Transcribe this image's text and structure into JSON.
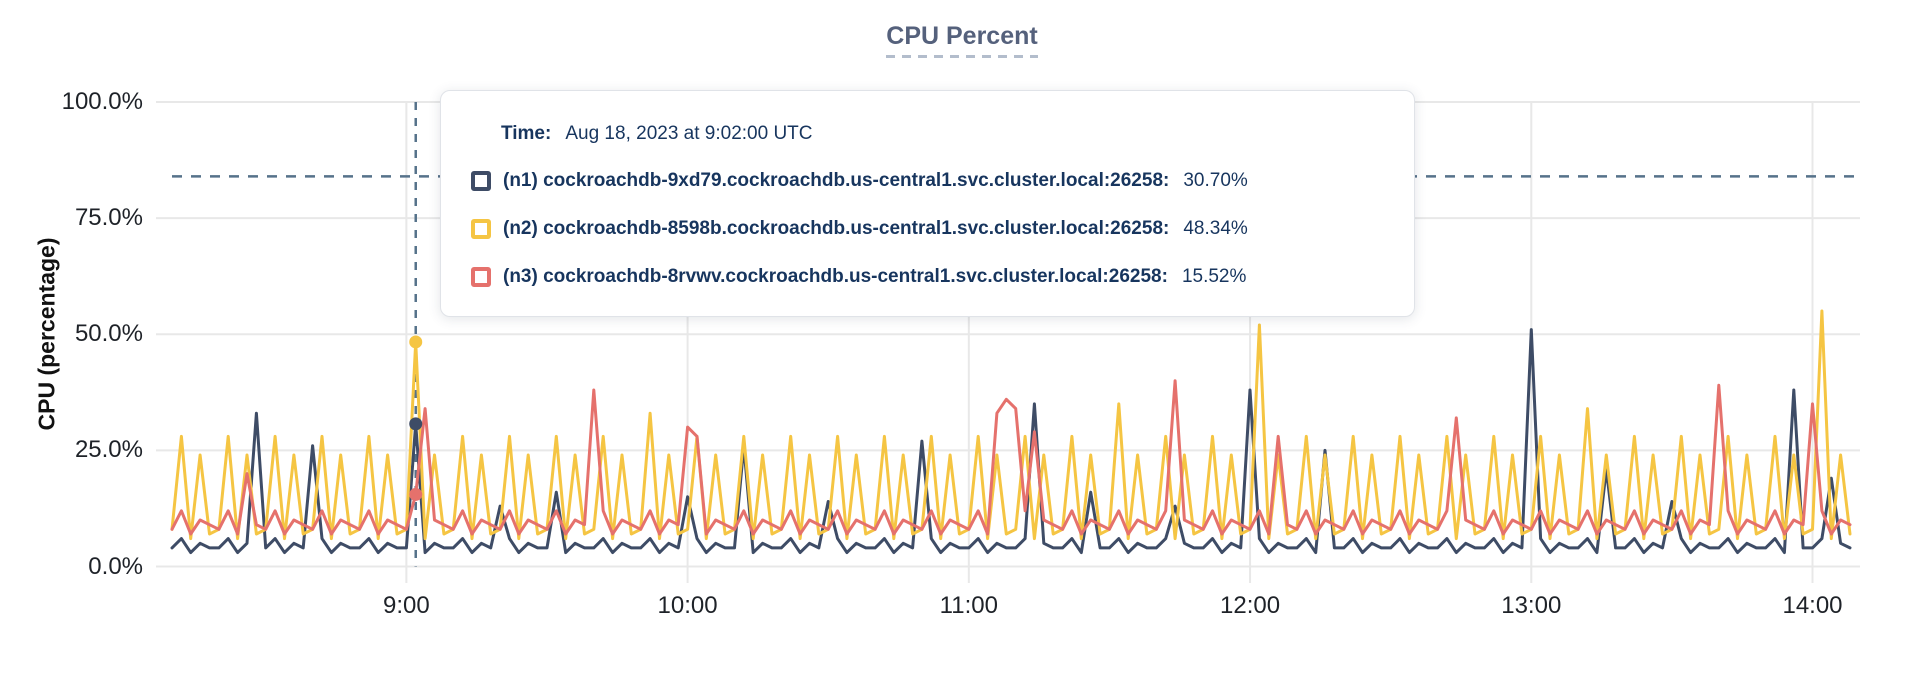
{
  "page": {
    "title": "CPU Percent"
  },
  "tooltip": {
    "time_label": "Time:",
    "time_value": "Aug 18, 2023 at 9:02:00 UTC",
    "series": [
      {
        "label": "(n1) cockroachdb-9xd79.cockroachdb.us-central1.svc.cluster.local:26258:",
        "value": "30.70%"
      },
      {
        "label": "(n2) cockroachdb-8598b.cockroachdb.us-central1.svc.cluster.local:26258:",
        "value": "48.34%"
      },
      {
        "label": "(n3) cockroachdb-8rvwv.cockroachdb.us-central1.svc.cluster.local:26258:",
        "value": "15.52%"
      }
    ]
  },
  "chart_data": {
    "type": "line",
    "title": "CPU Percent",
    "xlabel": "",
    "ylabel": "CPU (percentage)",
    "ylim": [
      0,
      100
    ],
    "grid": true,
    "legend_position": "hover-tooltip",
    "y_tick_labels": [
      "100.0%",
      "75.0%",
      "50.0%",
      "25.0%",
      "0.0%"
    ],
    "y_tick_values": [
      100,
      75,
      50,
      25,
      0
    ],
    "x_tick_labels": [
      "9:00",
      "10:00",
      "11:00",
      "12:00",
      "13:00",
      "14:00"
    ],
    "x_tick_minutes": [
      540,
      600,
      660,
      720,
      780,
      840
    ],
    "x_start_minutes": 490,
    "x_step_minutes": 2,
    "threshold_percent": 84,
    "hover_index": 26,
    "hover_time_minutes": 542,
    "colors": {
      "grid": "#e8e8e8",
      "dashed_line": "#56728a",
      "tick_text": "#1e2228",
      "title_text": "#55617c",
      "tooltip_text": "#17355e"
    },
    "series": [
      {
        "name": "n1",
        "host": "cockroachdb-9xd79.cockroachdb.us-central1.svc.cluster.local:26258",
        "color": "#3e4c66",
        "hover_value": 30.7,
        "values": [
          4,
          6,
          3,
          5,
          4,
          4,
          6,
          3,
          5,
          33,
          4,
          6,
          3,
          5,
          4,
          26,
          6,
          3,
          5,
          4,
          4,
          6,
          3,
          5,
          4,
          4,
          30.7,
          3,
          5,
          4,
          4,
          6,
          3,
          5,
          4,
          13,
          6,
          3,
          5,
          4,
          4,
          16,
          3,
          5,
          4,
          4,
          6,
          3,
          5,
          4,
          4,
          6,
          3,
          5,
          4,
          15,
          6,
          3,
          5,
          4,
          4,
          26,
          3,
          5,
          4,
          4,
          6,
          3,
          5,
          4,
          14,
          6,
          3,
          5,
          4,
          4,
          6,
          3,
          5,
          4,
          27,
          6,
          3,
          5,
          4,
          4,
          6,
          3,
          5,
          4,
          4,
          6,
          35,
          5,
          4,
          4,
          6,
          3,
          16,
          4,
          4,
          6,
          3,
          5,
          4,
          4,
          6,
          13,
          5,
          4,
          4,
          6,
          3,
          5,
          4,
          38,
          6,
          3,
          5,
          4,
          4,
          6,
          3,
          25,
          4,
          4,
          6,
          3,
          5,
          4,
          4,
          6,
          3,
          5,
          4,
          4,
          6,
          3,
          5,
          4,
          4,
          6,
          3,
          5,
          4,
          51,
          6,
          3,
          5,
          4,
          4,
          6,
          3,
          21,
          4,
          4,
          6,
          3,
          5,
          4,
          14,
          6,
          3,
          5,
          4,
          4,
          6,
          3,
          5,
          4,
          4,
          6,
          3,
          38,
          4,
          4,
          6,
          19,
          5,
          4
        ]
      },
      {
        "name": "n2",
        "host": "cockroachdb-8598b.cockroachdb.us-central1.svc.cluster.local:26258",
        "color": "#f5c543",
        "hover_value": 48.34,
        "values": [
          8,
          28,
          6,
          24,
          7,
          8,
          28,
          6,
          24,
          7,
          8,
          28,
          6,
          24,
          7,
          8,
          28,
          6,
          24,
          7,
          8,
          28,
          6,
          24,
          7,
          8,
          48.34,
          6,
          24,
          7,
          8,
          28,
          6,
          24,
          7,
          8,
          28,
          6,
          24,
          7,
          8,
          28,
          6,
          24,
          7,
          8,
          28,
          6,
          24,
          7,
          8,
          33,
          6,
          24,
          7,
          8,
          28,
          6,
          24,
          7,
          8,
          28,
          6,
          24,
          7,
          8,
          28,
          6,
          24,
          7,
          8,
          28,
          6,
          24,
          7,
          8,
          28,
          6,
          24,
          7,
          8,
          28,
          6,
          24,
          7,
          8,
          28,
          6,
          24,
          7,
          8,
          28,
          6,
          24,
          7,
          8,
          28,
          6,
          24,
          7,
          8,
          35,
          6,
          24,
          7,
          8,
          28,
          6,
          24,
          7,
          8,
          28,
          6,
          24,
          7,
          8,
          52,
          6,
          24,
          7,
          8,
          28,
          6,
          24,
          7,
          8,
          28,
          6,
          24,
          7,
          8,
          28,
          6,
          24,
          7,
          8,
          28,
          6,
          24,
          7,
          8,
          28,
          6,
          24,
          7,
          8,
          28,
          6,
          24,
          7,
          8,
          34,
          6,
          24,
          7,
          8,
          28,
          6,
          24,
          7,
          8,
          28,
          6,
          24,
          7,
          8,
          28,
          6,
          24,
          7,
          8,
          28,
          6,
          24,
          7,
          8,
          55,
          6,
          24,
          7
        ]
      },
      {
        "name": "n3",
        "host": "cockroachdb-8rvwv.cockroachdb.us-central1.svc.cluster.local:26258",
        "color": "#e5716c",
        "hover_value": 15.52,
        "values": [
          8,
          12,
          7,
          10,
          9,
          8,
          12,
          7,
          20,
          9,
          8,
          12,
          7,
          10,
          9,
          8,
          12,
          7,
          10,
          9,
          8,
          12,
          7,
          10,
          9,
          8,
          15.52,
          34,
          10,
          9,
          8,
          12,
          7,
          10,
          9,
          8,
          12,
          7,
          10,
          9,
          8,
          12,
          7,
          10,
          9,
          38,
          12,
          7,
          10,
          9,
          8,
          12,
          7,
          10,
          9,
          30,
          28,
          7,
          10,
          9,
          8,
          12,
          7,
          10,
          9,
          8,
          12,
          7,
          10,
          9,
          8,
          12,
          7,
          10,
          9,
          8,
          12,
          7,
          10,
          9,
          8,
          12,
          7,
          10,
          9,
          8,
          12,
          7,
          33,
          36,
          34,
          12,
          29,
          10,
          9,
          8,
          12,
          7,
          10,
          9,
          8,
          12,
          7,
          10,
          9,
          8,
          12,
          40,
          10,
          9,
          8,
          12,
          7,
          10,
          9,
          8,
          12,
          7,
          28,
          9,
          8,
          12,
          7,
          10,
          9,
          8,
          12,
          7,
          10,
          9,
          8,
          12,
          7,
          10,
          9,
          8,
          12,
          32,
          10,
          9,
          8,
          12,
          7,
          10,
          9,
          8,
          12,
          7,
          10,
          9,
          8,
          12,
          7,
          10,
          9,
          8,
          12,
          7,
          10,
          9,
          8,
          12,
          7,
          10,
          9,
          39,
          12,
          7,
          10,
          9,
          8,
          12,
          7,
          10,
          9,
          35,
          12,
          7,
          10,
          9
        ]
      }
    ]
  }
}
